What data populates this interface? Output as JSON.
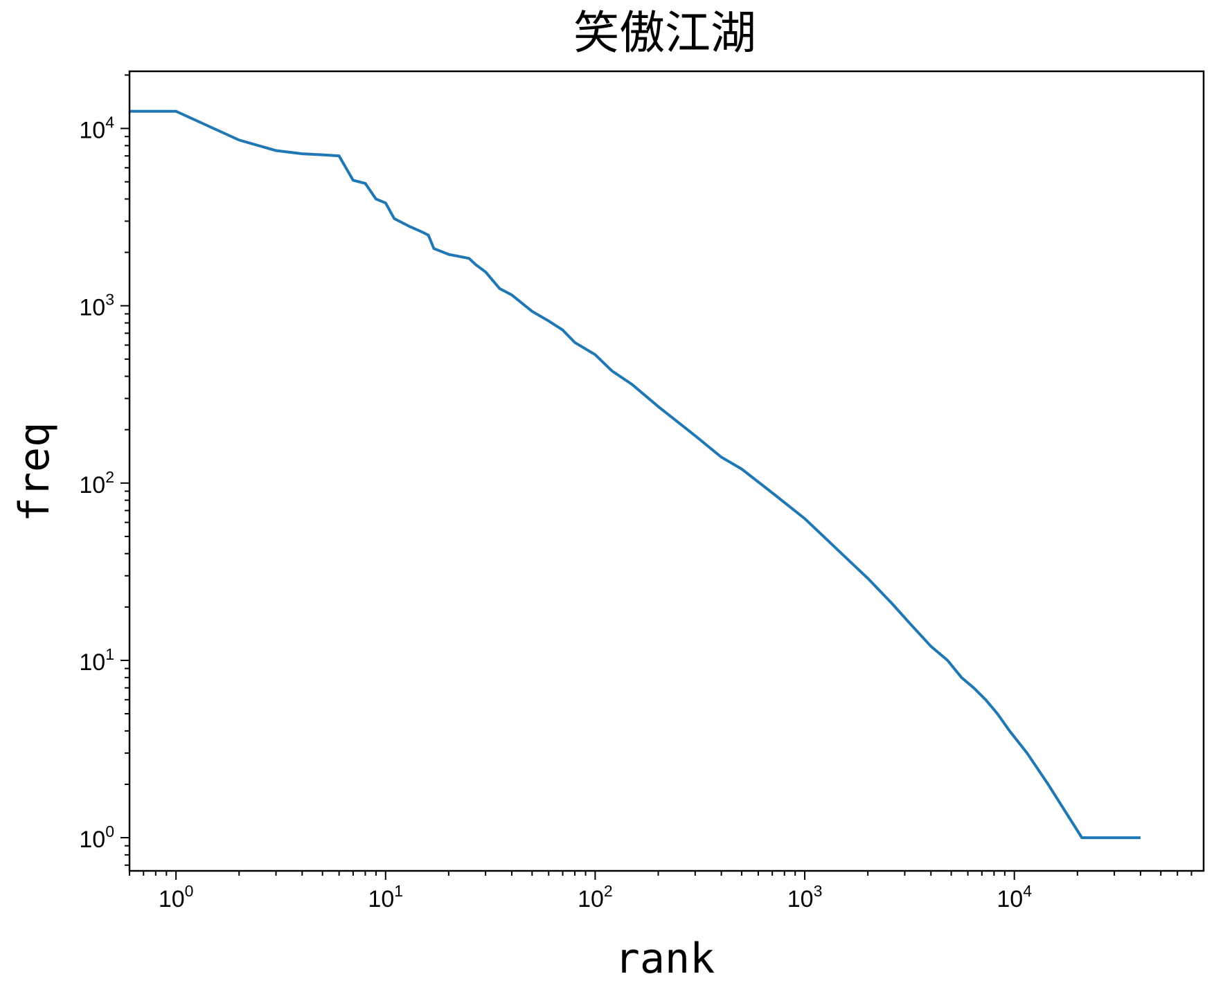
{
  "chart_data": {
    "type": "line",
    "title": "笑傲江湖",
    "xlabel": "rank",
    "ylabel": "freq",
    "x_scale": "log",
    "y_scale": "log",
    "xlim": [
      0.6,
      80000
    ],
    "ylim": [
      0.65,
      21000
    ],
    "grid": false,
    "x_ticks": [
      {
        "value": 1,
        "base": "10",
        "exp": "0"
      },
      {
        "value": 10,
        "base": "10",
        "exp": "1"
      },
      {
        "value": 100,
        "base": "10",
        "exp": "2"
      },
      {
        "value": 1000,
        "base": "10",
        "exp": "3"
      },
      {
        "value": 10000,
        "base": "10",
        "exp": "4"
      }
    ],
    "y_ticks": [
      {
        "value": 1,
        "base": "10",
        "exp": "0"
      },
      {
        "value": 10,
        "base": "10",
        "exp": "1"
      },
      {
        "value": 100,
        "base": "10",
        "exp": "2"
      },
      {
        "value": 1000,
        "base": "10",
        "exp": "3"
      },
      {
        "value": 10000,
        "base": "10",
        "exp": "4"
      }
    ],
    "series": [
      {
        "color": "#1f77b4",
        "x": [
          0.6,
          1,
          2,
          3,
          4,
          5,
          6,
          7,
          8,
          9,
          10,
          11,
          13,
          15,
          16,
          17,
          20,
          25,
          27,
          30,
          35,
          40,
          50,
          60,
          70,
          80,
          100,
          120,
          150,
          200,
          300,
          400,
          500,
          700,
          1000,
          1500,
          2000,
          2600,
          3200,
          4000,
          4800,
          5600,
          6400,
          7300,
          8300,
          9500,
          11500,
          14500,
          21000,
          40000
        ],
        "y": [
          12500,
          12500,
          8600,
          7500,
          7200,
          7100,
          7000,
          5100,
          4900,
          4000,
          3800,
          3100,
          2800,
          2600,
          2500,
          2100,
          1950,
          1850,
          1700,
          1550,
          1250,
          1150,
          930,
          820,
          730,
          620,
          530,
          430,
          360,
          270,
          185,
          140,
          120,
          88,
          63,
          40,
          29,
          21,
          16,
          12,
          10,
          8,
          7,
          6,
          5,
          4,
          3,
          2,
          1,
          1
        ]
      }
    ]
  }
}
